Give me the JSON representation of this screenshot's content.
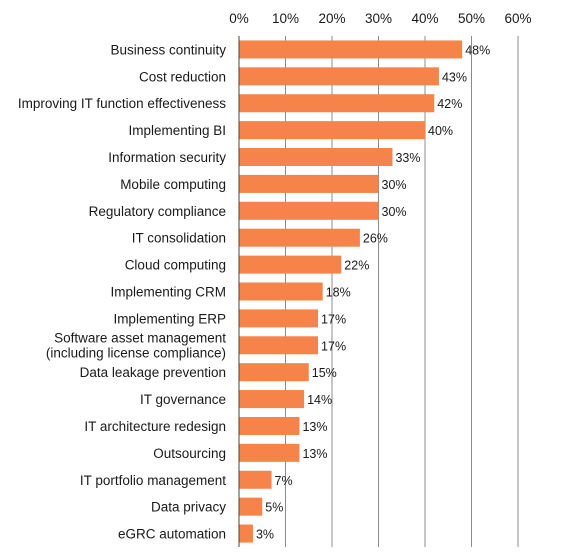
{
  "chart_data": {
    "type": "bar",
    "orientation": "horizontal",
    "categories": [
      "Business continuity",
      "Cost reduction",
      "Improving IT function effectiveness",
      "Implementing BI",
      "Information security",
      "Mobile computing",
      "Regulatory compliance",
      "IT consolidation",
      "Cloud computing",
      "Implementing CRM",
      "Implementing ERP",
      [
        "Software asset management",
        "(including license compliance)"
      ],
      "Data leakage prevention",
      "IT governance",
      "IT architecture redesign",
      "Outsourcing",
      "IT portfolio management",
      "Data privacy",
      "eGRC automation"
    ],
    "values": [
      48,
      43,
      42,
      40,
      33,
      30,
      30,
      26,
      22,
      18,
      17,
      17,
      15,
      14,
      13,
      13,
      7,
      5,
      3
    ],
    "value_labels": [
      "48%",
      "43%",
      "42%",
      "40%",
      "33%",
      "30%",
      "30%",
      "26%",
      "22%",
      "18%",
      "17%",
      "17%",
      "15%",
      "14%",
      "13%",
      "13%",
      "7%",
      "5%",
      "3%"
    ],
    "xlim": [
      0,
      60
    ],
    "xticks": [
      0,
      10,
      20,
      30,
      40,
      50,
      60
    ],
    "xtick_labels": [
      "0%",
      "10%",
      "20%",
      "30%",
      "40%",
      "50%",
      "60%"
    ],
    "xaxis_position": "top",
    "grid": true,
    "title": "",
    "xlabel": "",
    "ylabel": "",
    "bar_color": "#f5834a"
  }
}
